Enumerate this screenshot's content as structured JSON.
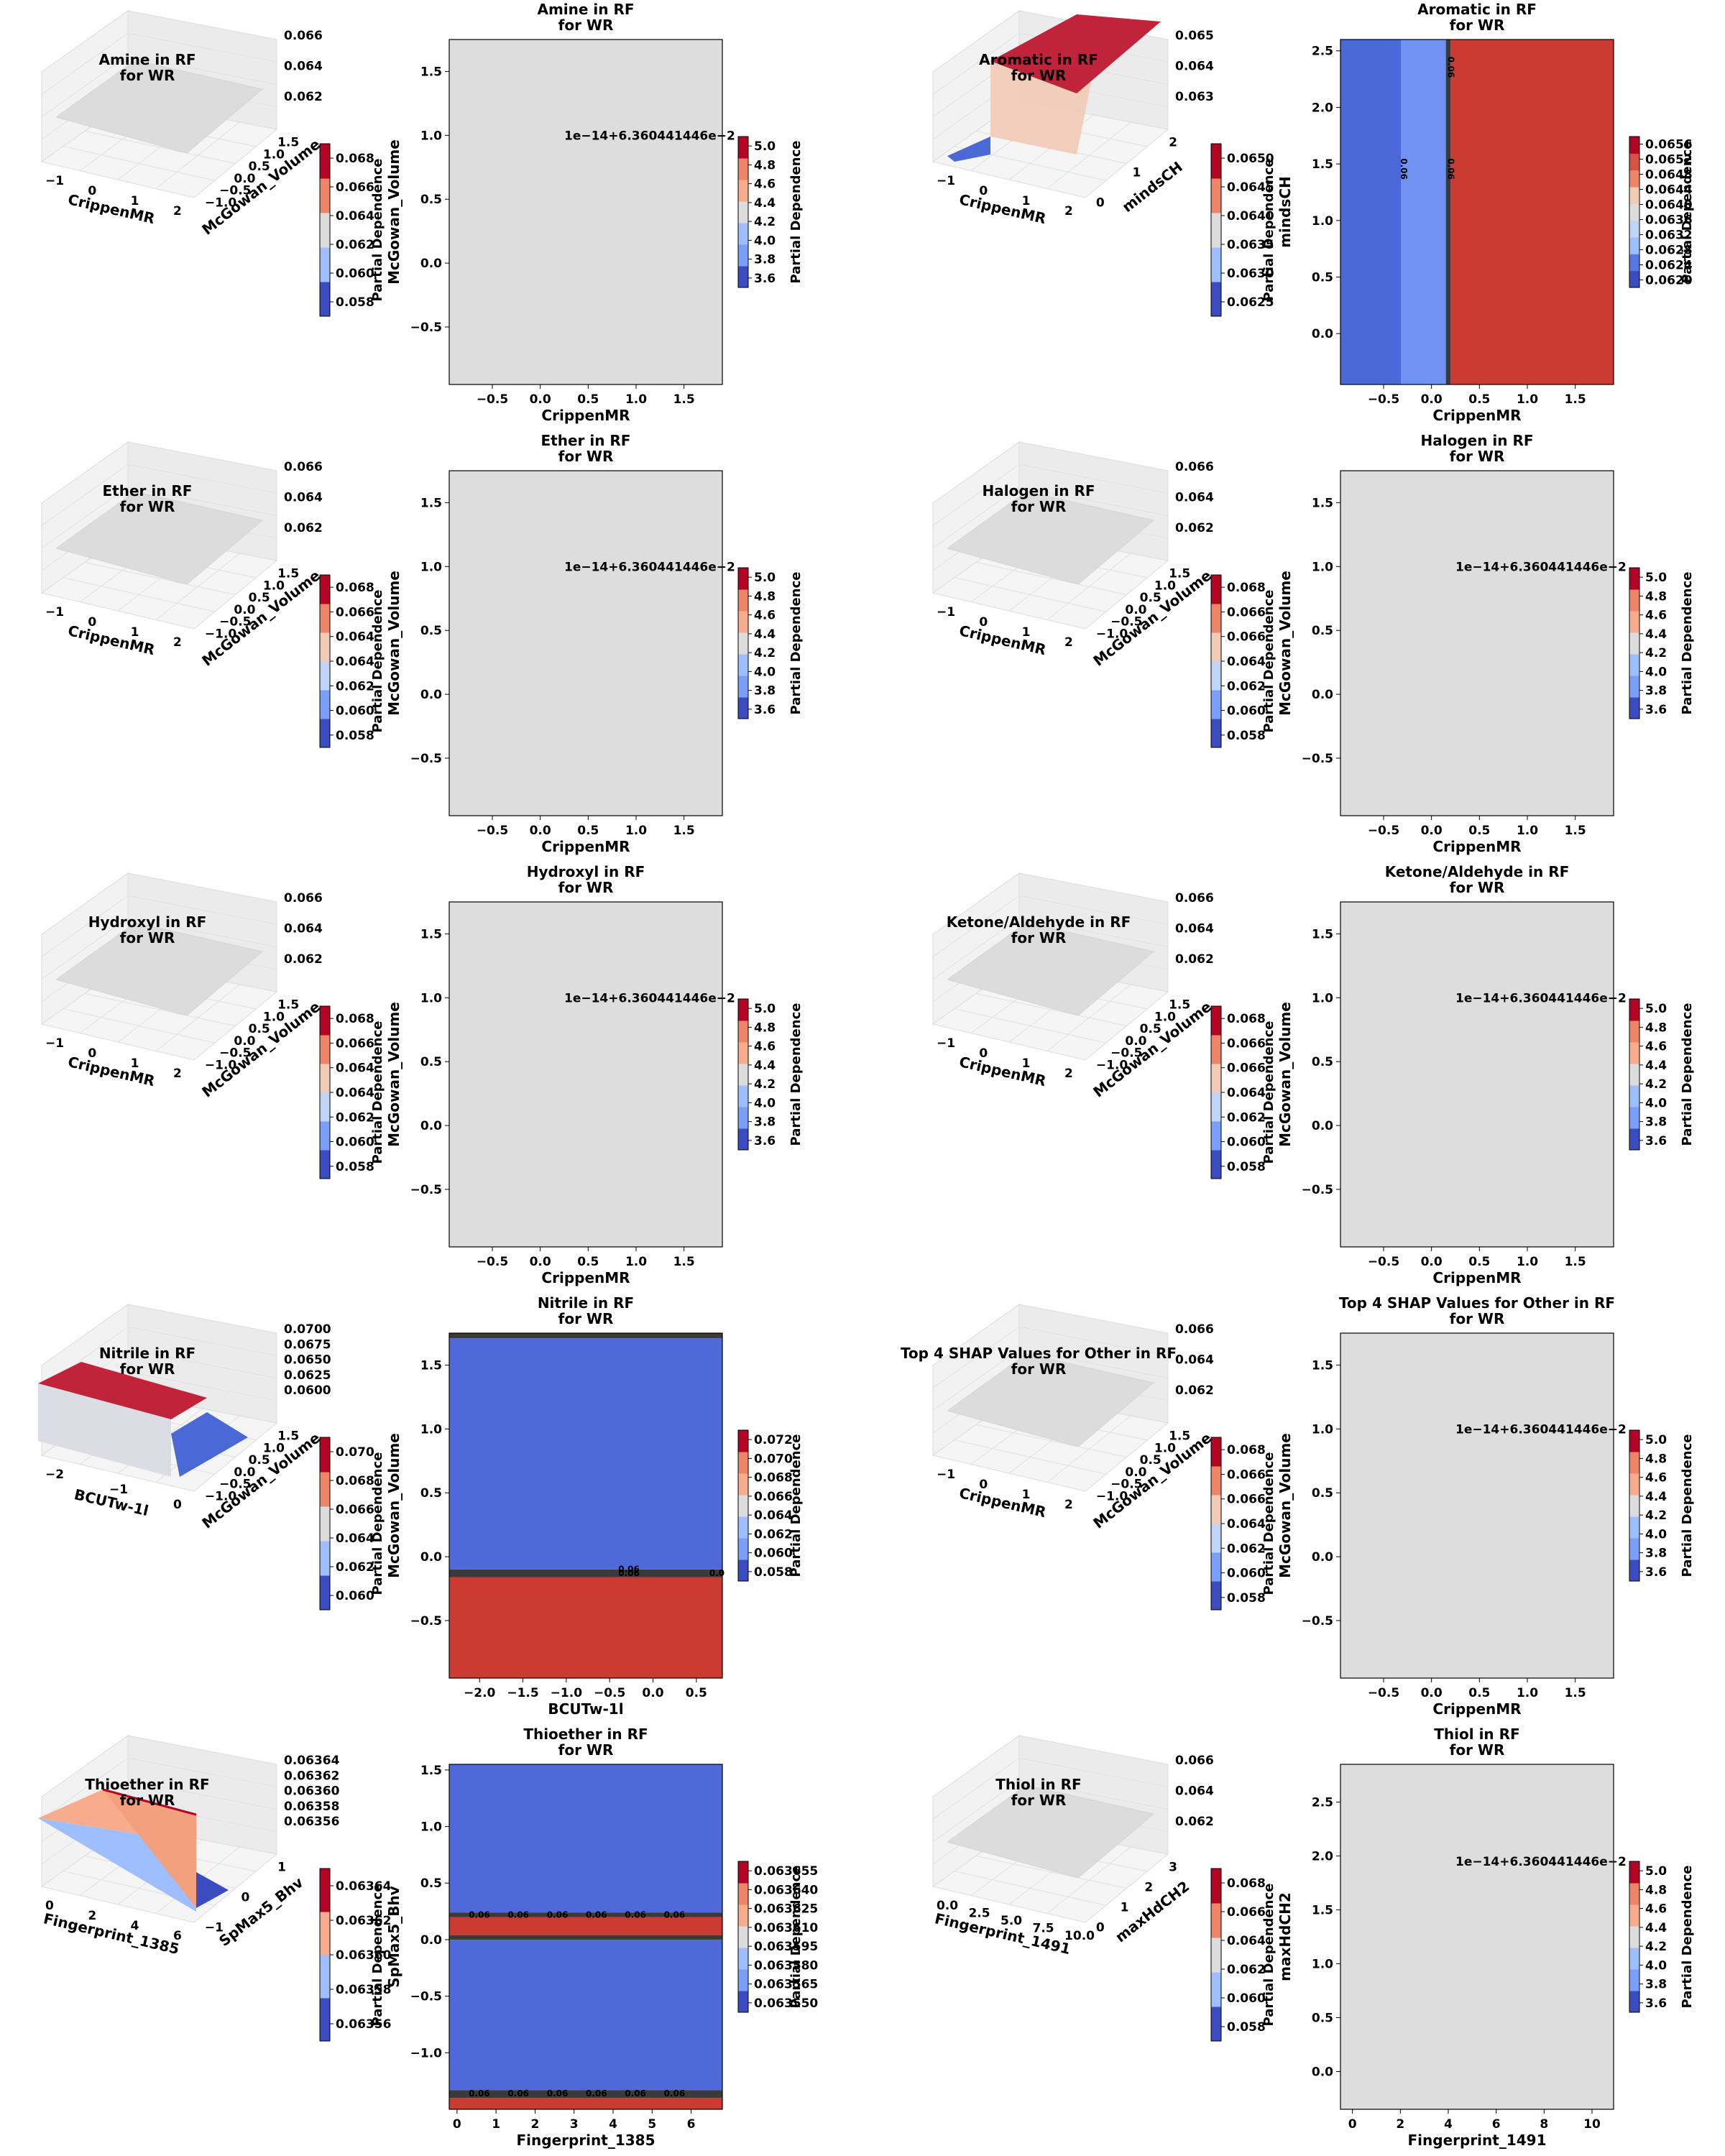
{
  "chart_data": [
    {
      "type": "surface3d",
      "title": "Amine in RF\nfor WR",
      "xlabel": "CrippenMR",
      "ylabel": "McGowan_Volume",
      "x_ticks": [
        "−1",
        "0",
        "1",
        "2"
      ],
      "y_ticks": [
        "−1.0",
        "−0.5",
        "0.0",
        "0.5",
        "1.0",
        "1.5"
      ],
      "z_ticks": [
        "0.062",
        "0.064",
        "0.066"
      ],
      "surface": "flat",
      "colorbar_label": "Partial Dependence",
      "colorbar_ticks": [
        "0.058",
        "0.060",
        "0.062",
        "0.064",
        "0.066",
        "0.068"
      ],
      "colors": [
        "#3b4cc0",
        "#dddddd",
        "#b40426"
      ]
    },
    {
      "type": "contour",
      "title": "Amine in RF\nfor WR",
      "xlabel": "CrippenMR",
      "ylabel": "McGowan_Volume",
      "xlim": [
        -0.95,
        1.9
      ],
      "ylim": [
        -0.95,
        1.75
      ],
      "x_ticks": [
        -0.5,
        0.0,
        0.5,
        1.0,
        1.5
      ],
      "y_ticks": [
        -0.5,
        0.0,
        0.5,
        1.0,
        1.5
      ],
      "fill": "flat",
      "offset_text": "1e−14+6.360441446e−2",
      "colorbar_label": "Partial Dependence",
      "colorbar_ticks": [
        "3.6",
        "3.8",
        "4.0",
        "4.2",
        "4.4",
        "4.6",
        "4.8",
        "5.0"
      ]
    },
    {
      "type": "surface3d",
      "title": "Aromatic in RF\nfor WR",
      "xlabel": "CrippenMR",
      "ylabel": "mindsCH",
      "x_ticks": [
        "−1",
        "0",
        "1",
        "2"
      ],
      "y_ticks": [
        "0",
        "1",
        "2"
      ],
      "z_ticks": [
        "0.063",
        "0.064",
        "0.065"
      ],
      "surface": "step",
      "colorbar_label": "Partial Dependence",
      "colorbar_ticks": [
        "0.0625",
        "0.0630",
        "0.0635",
        "0.0640",
        "0.0645",
        "0.0650"
      ]
    },
    {
      "type": "contour",
      "title": "Aromatic in RF\nfor WR",
      "xlabel": "CrippenMR",
      "ylabel": "mindsCH",
      "xlim": [
        -0.95,
        1.9
      ],
      "ylim": [
        -0.45,
        2.6
      ],
      "x_ticks": [
        -0.5,
        0.0,
        0.5,
        1.0,
        1.5
      ],
      "y_ticks": [
        0.0,
        0.5,
        1.0,
        1.5,
        2.0,
        2.5
      ],
      "fill": "vbands",
      "bands": [
        {
          "from": -0.95,
          "to": -0.32,
          "color": "#4a68d6"
        },
        {
          "from": -0.32,
          "to": 0.15,
          "color": "#6f92f3"
        },
        {
          "from": 0.15,
          "to": 0.2,
          "color": "#3a3a3a"
        },
        {
          "from": 0.2,
          "to": 1.9,
          "color": "#cc3b32"
        }
      ],
      "contour_labels": [
        "0.06",
        "0.06",
        "0.06"
      ],
      "colorbar_label": "Partial Dependence",
      "colorbar_ticks": [
        "0.0620",
        "0.0624",
        "0.0628",
        "0.0632",
        "0.0636",
        "0.0640",
        "0.0644",
        "0.0648",
        "0.0652",
        "0.0656"
      ]
    },
    {
      "type": "surface3d",
      "title": "Ether in RF\nfor WR",
      "xlabel": "CrippenMR",
      "ylabel": "McGowan_Volume",
      "x_ticks": [
        "−1",
        "0",
        "1",
        "2"
      ],
      "y_ticks": [
        "−1.0",
        "−0.5",
        "0.0",
        "0.5",
        "1.0",
        "1.5"
      ],
      "z_ticks": [
        "0.062",
        "0.064",
        "0.066"
      ],
      "surface": "flat",
      "colorbar_label": "Partial Dependence",
      "colorbar_ticks": [
        "0.058",
        "0.060",
        "0.062",
        "0.064",
        "0.064",
        "0.066",
        "0.068"
      ]
    },
    {
      "type": "contour",
      "title": "Ether in RF\nfor WR",
      "xlabel": "CrippenMR",
      "ylabel": "McGowan_Volume",
      "xlim": [
        -0.95,
        1.9
      ],
      "ylim": [
        -0.95,
        1.75
      ],
      "x_ticks": [
        -0.5,
        0.0,
        0.5,
        1.0,
        1.5
      ],
      "y_ticks": [
        -0.5,
        0.0,
        0.5,
        1.0,
        1.5
      ],
      "fill": "flat",
      "offset_text": "1e−14+6.360441446e−2",
      "colorbar_label": "Partial Dependence",
      "colorbar_ticks": [
        "3.6",
        "3.8",
        "4.0",
        "4.2",
        "4.4",
        "4.6",
        "4.8",
        "5.0"
      ]
    },
    {
      "type": "surface3d",
      "title": "Halogen in RF\nfor WR",
      "xlabel": "CrippenMR",
      "ylabel": "McGowan_Volume",
      "x_ticks": [
        "−1",
        "0",
        "1",
        "2"
      ],
      "y_ticks": [
        "−1.0",
        "−0.5",
        "0.0",
        "0.5",
        "1.0",
        "1.5"
      ],
      "z_ticks": [
        "0.062",
        "0.064",
        "0.066"
      ],
      "surface": "flat",
      "colorbar_label": "Partial Dependence",
      "colorbar_ticks": [
        "0.058",
        "0.060",
        "0.062",
        "0.064",
        "0.066",
        "0.066",
        "0.068"
      ]
    },
    {
      "type": "contour",
      "title": "Halogen in RF\nfor WR",
      "xlabel": "CrippenMR",
      "ylabel": "McGowan_Volume",
      "xlim": [
        -0.95,
        1.9
      ],
      "ylim": [
        -0.95,
        1.75
      ],
      "x_ticks": [
        -0.5,
        0.0,
        0.5,
        1.0,
        1.5
      ],
      "y_ticks": [
        -0.5,
        0.0,
        0.5,
        1.0,
        1.5
      ],
      "fill": "flat",
      "offset_text": "1e−14+6.360441446e−2",
      "colorbar_label": "Partial Dependence",
      "colorbar_ticks": [
        "3.6",
        "3.8",
        "4.0",
        "4.2",
        "4.4",
        "4.6",
        "4.8",
        "5.0"
      ]
    },
    {
      "type": "surface3d",
      "title": "Hydroxyl in RF\nfor WR",
      "xlabel": "CrippenMR",
      "ylabel": "McGowan_Volume",
      "x_ticks": [
        "−1",
        "0",
        "1",
        "2"
      ],
      "y_ticks": [
        "−1.0",
        "−0.5",
        "0.0",
        "0.5",
        "1.0",
        "1.5"
      ],
      "z_ticks": [
        "0.062",
        "0.064",
        "0.066"
      ],
      "surface": "flat",
      "colorbar_label": "Partial Dependence",
      "colorbar_ticks": [
        "0.058",
        "0.060",
        "0.062",
        "0.064",
        "0.064",
        "0.066",
        "0.068"
      ]
    },
    {
      "type": "contour",
      "title": "Hydroxyl in RF\nfor WR",
      "xlabel": "CrippenMR",
      "ylabel": "McGowan_Volume",
      "xlim": [
        -0.95,
        1.9
      ],
      "ylim": [
        -0.95,
        1.75
      ],
      "x_ticks": [
        -0.5,
        0.0,
        0.5,
        1.0,
        1.5
      ],
      "y_ticks": [
        -0.5,
        0.0,
        0.5,
        1.0,
        1.5
      ],
      "fill": "flat",
      "offset_text": "1e−14+6.360441446e−2",
      "colorbar_label": "Partial Dependence",
      "colorbar_ticks": [
        "3.6",
        "3.8",
        "4.0",
        "4.2",
        "4.4",
        "4.6",
        "4.8",
        "5.0"
      ]
    },
    {
      "type": "surface3d",
      "title": "Ketone/Aldehyde in RF\nfor WR",
      "xlabel": "CrippenMR",
      "ylabel": "McGowan_Volume",
      "x_ticks": [
        "−1",
        "0",
        "1",
        "2"
      ],
      "y_ticks": [
        "−1.0",
        "−0.5",
        "0.0",
        "0.5",
        "1.0",
        "1.5"
      ],
      "z_ticks": [
        "0.062",
        "0.064",
        "0.066"
      ],
      "surface": "flat",
      "colorbar_label": "Partial Dependence",
      "colorbar_ticks": [
        "0.058",
        "0.060",
        "0.062",
        "0.064",
        "0.066",
        "0.066",
        "0.068"
      ]
    },
    {
      "type": "contour",
      "title": "Ketone/Aldehyde in RF\nfor WR",
      "xlabel": "CrippenMR",
      "ylabel": "McGowan_Volume",
      "xlim": [
        -0.95,
        1.9
      ],
      "ylim": [
        -0.95,
        1.75
      ],
      "x_ticks": [
        -0.5,
        0.0,
        0.5,
        1.0,
        1.5
      ],
      "y_ticks": [
        -0.5,
        0.0,
        0.5,
        1.0,
        1.5
      ],
      "fill": "flat",
      "offset_text": "1e−14+6.360441446e−2",
      "colorbar_label": "Partial Dependence",
      "colorbar_ticks": [
        "3.6",
        "3.8",
        "4.0",
        "4.2",
        "4.4",
        "4.6",
        "4.8",
        "5.0"
      ]
    },
    {
      "type": "surface3d",
      "title": "Nitrile in RF\nfor WR",
      "xlabel": "BCUTw-1l",
      "ylabel": "McGowan_Volume",
      "x_ticks": [
        "−2",
        "−1",
        "0"
      ],
      "y_ticks": [
        "−1.0",
        "−0.5",
        "0.0",
        "0.5",
        "1.0",
        "1.5"
      ],
      "z_ticks": [
        "0.0600",
        "0.0625",
        "0.0650",
        "0.0675",
        "0.0700"
      ],
      "surface": "step2",
      "colorbar_label": "Partial Dependence",
      "colorbar_ticks": [
        "0.060",
        "0.062",
        "0.064",
        "0.066",
        "0.068",
        "0.070"
      ]
    },
    {
      "type": "contour",
      "title": "Nitrile in RF\nfor WR",
      "xlabel": "BCUTw-1l",
      "ylabel": "McGowan_Volume",
      "xlim": [
        -2.35,
        0.8
      ],
      "ylim": [
        -0.95,
        1.75
      ],
      "x_ticks": [
        -2.0,
        -1.5,
        -1.0,
        -0.5,
        0.0,
        0.5
      ],
      "y_ticks": [
        -0.5,
        0.0,
        0.5,
        1.0,
        1.5
      ],
      "fill": "hbands",
      "bands": [
        {
          "from": -0.95,
          "to": -0.16,
          "color": "#cc3b32"
        },
        {
          "from": -0.16,
          "to": -0.1,
          "color": "#3a3a3a"
        },
        {
          "from": -0.1,
          "to": 1.71,
          "color": "#4f69d9"
        },
        {
          "from": 1.71,
          "to": 1.75,
          "color": "#3a3a3a"
        }
      ],
      "contour_labels": [
        "0.06",
        "0.06",
        "0.06",
        "0.0"
      ],
      "colorbar_label": "Partial Dependence",
      "colorbar_ticks": [
        "0.058",
        "0.060",
        "0.062",
        "0.064",
        "0.066",
        "0.068",
        "0.070",
        "0.072"
      ]
    },
    {
      "type": "surface3d",
      "title": "Top 4 SHAP Values for Other in RF\nfor WR",
      "xlabel": "CrippenMR",
      "ylabel": "McGowan_Volume",
      "x_ticks": [
        "−1",
        "0",
        "1",
        "2"
      ],
      "y_ticks": [
        "−1.0",
        "−0.5",
        "0.0",
        "0.5",
        "1.0",
        "1.5"
      ],
      "z_ticks": [
        "0.062",
        "0.064",
        "0.066"
      ],
      "surface": "flat",
      "colorbar_label": "Partial Dependence",
      "colorbar_ticks": [
        "0.058",
        "0.060",
        "0.062",
        "0.064",
        "0.066",
        "0.066",
        "0.068"
      ]
    },
    {
      "type": "contour",
      "title": "Top 4 SHAP Values for Other in RF\nfor WR",
      "xlabel": "CrippenMR",
      "ylabel": "McGowan_Volume",
      "xlim": [
        -0.95,
        1.9
      ],
      "ylim": [
        -0.95,
        1.75
      ],
      "x_ticks": [
        -0.5,
        0.0,
        0.5,
        1.0,
        1.5
      ],
      "y_ticks": [
        -0.5,
        0.0,
        0.5,
        1.0,
        1.5
      ],
      "fill": "flat",
      "offset_text": "1e−14+6.360441446e−2",
      "colorbar_label": "Partial Dependence",
      "colorbar_ticks": [
        "3.6",
        "3.8",
        "4.0",
        "4.2",
        "4.4",
        "4.6",
        "4.8",
        "5.0"
      ]
    },
    {
      "type": "surface3d",
      "title": "Thioether in RF\nfor WR",
      "xlabel": "Fingerprint_1385",
      "ylabel": "SpMax5_Bhv",
      "x_ticks": [
        "0",
        "2",
        "4",
        "6"
      ],
      "y_ticks": [
        "−1",
        "0",
        "1"
      ],
      "z_ticks": [
        "0.06356",
        "0.06358",
        "0.06360",
        "0.06362",
        "0.06364"
      ],
      "surface": "wedge",
      "colorbar_label": "Partial Dependence",
      "colorbar_ticks": [
        "0.06356",
        "0.06358",
        "0.06360",
        "0.06362",
        "0.06364"
      ]
    },
    {
      "type": "contour",
      "title": "Thioether in RF\nfor WR",
      "xlabel": "Fingerprint_1385",
      "ylabel": "SpMax5_Bhv",
      "xlim": [
        -0.2,
        6.8
      ],
      "ylim": [
        -1.5,
        1.55
      ],
      "x_ticks": [
        0,
        1,
        2,
        3,
        4,
        5,
        6
      ],
      "y_ticks": [
        -1.0,
        -0.5,
        0.0,
        0.5,
        1.0,
        1.5
      ],
      "fill": "hbands",
      "bands": [
        {
          "from": -1.5,
          "to": -1.4,
          "color": "#cc3b32"
        },
        {
          "from": -1.4,
          "to": -1.33,
          "color": "#3a3a3a"
        },
        {
          "from": -1.33,
          "to": 0.0,
          "color": "#4f69d9"
        },
        {
          "from": 0.0,
          "to": 0.04,
          "color": "#3a3a3a"
        },
        {
          "from": 0.04,
          "to": 0.2,
          "color": "#cc3b32"
        },
        {
          "from": 0.2,
          "to": 0.24,
          "color": "#3a3a3a"
        },
        {
          "from": 0.24,
          "to": 1.55,
          "color": "#4f69d9"
        }
      ],
      "contour_labels": [
        "0.06",
        "0.06",
        "0.06",
        "0.06",
        "0.06",
        "0.06"
      ],
      "colorbar_label": "Partial Dependence",
      "colorbar_ticks": [
        "0.063550",
        "0.063565",
        "0.063580",
        "0.063595",
        "0.063610",
        "0.063625",
        "0.063640",
        "0.063655"
      ]
    },
    {
      "type": "surface3d",
      "title": "Thiol in RF\nfor WR",
      "xlabel": "Fingerprint_1491",
      "ylabel": "maxHdCH2",
      "x_ticks": [
        "0.0",
        "2.5",
        "5.0",
        "7.5",
        "10.0"
      ],
      "y_ticks": [
        "0",
        "1",
        "2",
        "3"
      ],
      "z_ticks": [
        "0.062",
        "0.064",
        "0.066"
      ],
      "surface": "flat",
      "colorbar_label": "Partial Dependence",
      "colorbar_ticks": [
        "0.058",
        "0.060",
        "0.062",
        "0.064",
        "0.066",
        "0.068"
      ]
    },
    {
      "type": "contour",
      "title": "Thiol in RF\nfor WR",
      "xlabel": "Fingerprint_1491",
      "ylabel": "maxHdCH2",
      "xlim": [
        -0.5,
        10.9
      ],
      "ylim": [
        -0.35,
        2.85
      ],
      "x_ticks": [
        0,
        2,
        4,
        6,
        8,
        10
      ],
      "y_ticks": [
        0.0,
        0.5,
        1.0,
        1.5,
        2.0,
        2.5
      ],
      "fill": "flat",
      "offset_text": "1e−14+6.360441446e−2",
      "colorbar_label": "Partial Dependence",
      "colorbar_ticks": [
        "3.6",
        "3.8",
        "4.0",
        "4.2",
        "4.4",
        "4.6",
        "4.8",
        "5.0"
      ]
    }
  ]
}
